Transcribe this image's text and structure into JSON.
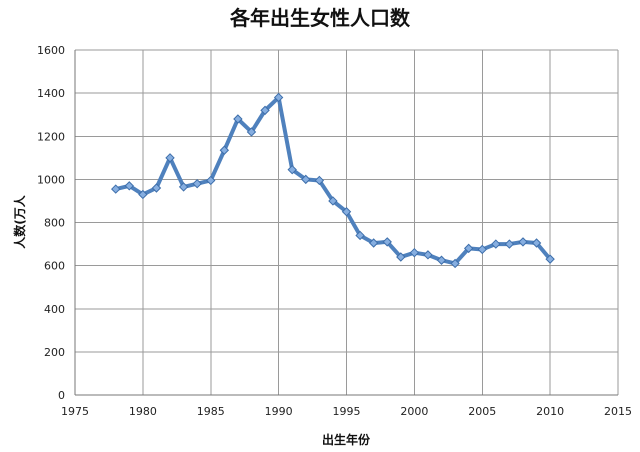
{
  "chart_data": {
    "type": "line",
    "title": "各年出生女性人口数",
    "xlabel": "出生年份",
    "ylabel": "人数(万人",
    "xlim": [
      1975,
      2015
    ],
    "ylim": [
      0,
      1600
    ],
    "xticks": [
      "1975",
      "1980",
      "1985",
      "1990",
      "1995",
      "2000",
      "2005",
      "2010",
      "2015"
    ],
    "yticks": [
      "0",
      "200",
      "400",
      "600",
      "800",
      "1000",
      "1200",
      "1400",
      "1600"
    ],
    "grid": true,
    "series": [
      {
        "x": [
          1978,
          1979,
          1980,
          1981,
          1982,
          1983,
          1984,
          1985,
          1986,
          1987,
          1988,
          1989,
          1990,
          1991,
          1992,
          1993,
          1994,
          1995,
          1996,
          1997,
          1998,
          1999,
          2000,
          2001,
          2002,
          2003,
          2004,
          2005,
          2006,
          2007,
          2008,
          2009,
          2010
        ],
        "values": [
          955,
          970,
          930,
          960,
          1100,
          965,
          980,
          995,
          1135,
          1280,
          1220,
          1320,
          1380,
          1045,
          1000,
          995,
          900,
          850,
          740,
          705,
          710,
          640,
          660,
          650,
          625,
          610,
          680,
          675,
          700,
          700,
          710,
          705,
          630
        ]
      }
    ],
    "colors": {
      "line": "#4F81BD",
      "marker_fill": "#86AEE0",
      "marker_stroke": "#3D6EAA",
      "grid": "#9A9A9A"
    }
  }
}
